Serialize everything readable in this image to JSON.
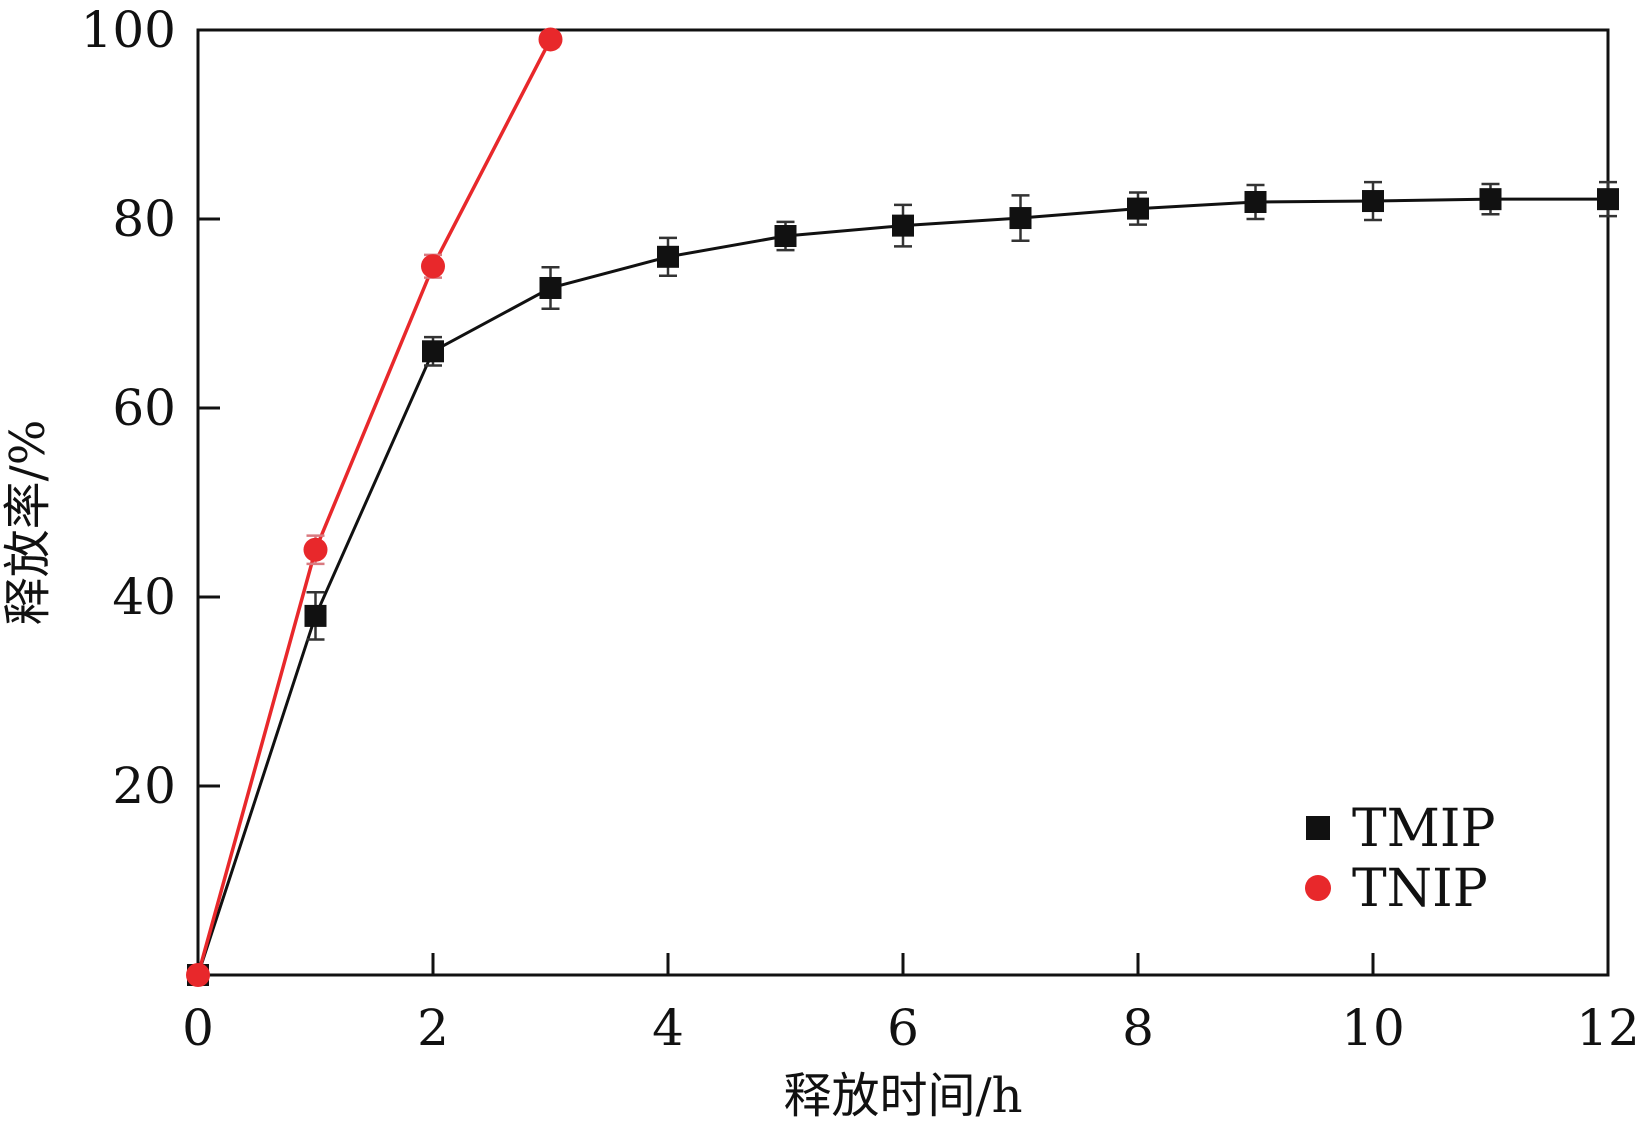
{
  "chart_data": {
    "type": "line",
    "xlabel": "释放时间/h",
    "ylabel": "释放率/%",
    "xlim": [
      0,
      12
    ],
    "ylim": [
      0,
      100
    ],
    "xticks": [
      0,
      2,
      4,
      6,
      8,
      10,
      12
    ],
    "yticks": [
      20,
      40,
      60,
      80,
      100
    ],
    "grid": false,
    "legend_position": "bottom-right",
    "series": [
      {
        "name": "TMIP",
        "color": "#111111",
        "marker": "square",
        "x": [
          0,
          1,
          2,
          3,
          4,
          5,
          6,
          7,
          8,
          9,
          10,
          11,
          12
        ],
        "y": [
          0,
          38,
          66,
          72.7,
          76,
          78.2,
          79.3,
          80.1,
          81.1,
          81.8,
          81.9,
          82.1,
          82.1
        ],
        "error": [
          0,
          2.5,
          1.5,
          2.2,
          2.0,
          1.5,
          2.2,
          2.4,
          1.7,
          1.8,
          2.0,
          1.6,
          1.8
        ]
      },
      {
        "name": "TNIP",
        "color": "#e8282b",
        "marker": "circle",
        "x": [
          0,
          1,
          2,
          3
        ],
        "y": [
          0,
          45,
          75,
          99
        ],
        "error": [
          0,
          1.5,
          1.2,
          0.8
        ]
      }
    ]
  }
}
